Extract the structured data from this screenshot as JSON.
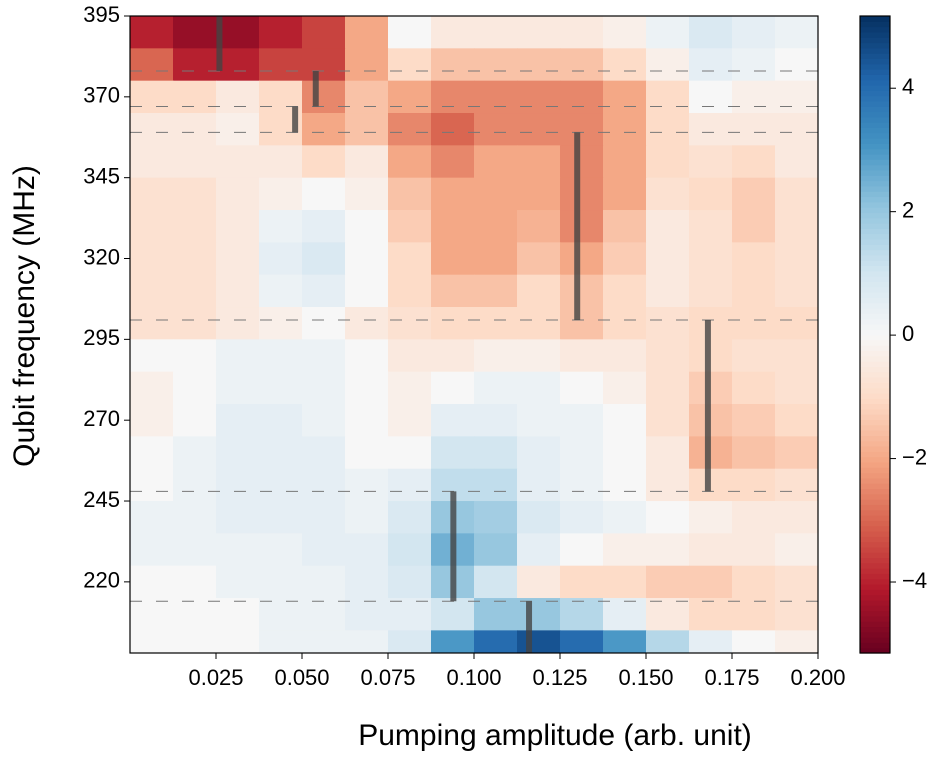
{
  "chart_data": {
    "type": "heatmap",
    "xlabel": "Pumping amplitude (arb. unit)",
    "ylabel": "Qubit frequency (MHz)",
    "xlim": [
      0,
      0.2
    ],
    "ylim": [
      198,
      395
    ],
    "xticks": [
      0.025,
      {
        "value": 0.05,
        "label": "0.050"
      },
      0.075,
      {
        "value": 0.1,
        "label": "0.100"
      },
      0.125,
      {
        "value": 0.15,
        "label": "0.150"
      },
      0.175,
      {
        "value": 0.2,
        "label": "0.200"
      }
    ],
    "yticks": [
      220,
      245,
      270,
      295,
      320,
      345,
      370,
      395
    ],
    "colormap": "RdBu",
    "clim": [
      -5.15,
      5.17
    ],
    "cticks": [
      {
        "value": -4,
        "label": "−4"
      },
      {
        "value": -2,
        "label": "−2"
      },
      0,
      2,
      4
    ],
    "x_edges": [
      0,
      0.0125,
      0.025,
      0.0375,
      0.05,
      0.0625,
      0.075,
      0.0875,
      0.1,
      0.1125,
      0.125,
      0.1375,
      0.15,
      0.1625,
      0.175,
      0.1875,
      0.2
    ],
    "y_edges": [
      395,
      385,
      375,
      365,
      355,
      345,
      335,
      325,
      315,
      305,
      295,
      285,
      275,
      265,
      255,
      245,
      235,
      225,
      215,
      205,
      198
    ],
    "z": [
      [
        -4,
        -4.5,
        -4.5,
        -4,
        -3.5,
        -2,
        0,
        -0.5,
        -0.5,
        -0.5,
        -0.5,
        -0.3,
        0.3,
        0.8,
        0.5,
        0.3
      ],
      [
        -3,
        -4,
        -4,
        -3.5,
        -3.5,
        -2,
        -1,
        -1.5,
        -1.5,
        -1.5,
        -1.5,
        -1,
        -0.3,
        0.5,
        0.3,
        0
      ],
      [
        -1,
        -1,
        -0.5,
        -1,
        -2.5,
        -1.5,
        -2,
        -2.5,
        -2.5,
        -2.5,
        -2.5,
        -2,
        -1,
        0,
        -0.3,
        -0.3
      ],
      [
        -0.5,
        -0.5,
        -0.3,
        -1,
        -2,
        -1.5,
        -2.5,
        -3,
        -2.5,
        -2.5,
        -2.5,
        -2,
        -1,
        -0.5,
        -0.5,
        -0.5
      ],
      [
        -0.5,
        -0.5,
        -0.5,
        -0.5,
        -1,
        -0.5,
        -2,
        -2.5,
        -2,
        -2,
        -2.5,
        -2,
        -1,
        -0.8,
        -1,
        -0.5
      ],
      [
        -0.8,
        -0.8,
        -0.5,
        -0.3,
        0,
        -0.3,
        -1.5,
        -2,
        -2,
        -2,
        -2.5,
        -2,
        -0.8,
        -1,
        -1.3,
        -0.8
      ],
      [
        -0.8,
        -0.8,
        -0.5,
        0.3,
        0.5,
        0,
        -1.3,
        -2,
        -2,
        -1.8,
        -2.5,
        -1.5,
        -0.5,
        -0.8,
        -1.3,
        -0.8
      ],
      [
        -0.8,
        -0.8,
        -0.5,
        0.5,
        0.8,
        0,
        -1,
        -2,
        -2,
        -1.5,
        -2,
        -1.3,
        -0.5,
        -0.8,
        -1,
        -0.8
      ],
      [
        -0.8,
        -0.8,
        -0.5,
        0.3,
        0.5,
        0,
        -1,
        -1.5,
        -1.5,
        -1,
        -1.5,
        -1,
        -0.5,
        -0.8,
        -1,
        -0.8
      ],
      [
        -0.8,
        -0.8,
        -0.5,
        -0.3,
        0,
        -0.5,
        -0.8,
        -1,
        -1,
        -1,
        -1.5,
        -1,
        -0.8,
        -1,
        -1,
        -1
      ],
      [
        0,
        0,
        0.3,
        0.3,
        0.3,
        0,
        -0.5,
        -0.5,
        -0.3,
        -0.3,
        -0.5,
        -0.5,
        -0.8,
        -1,
        -0.8,
        -0.8
      ],
      [
        -0.3,
        0,
        0.3,
        0.3,
        0.3,
        0,
        -0.3,
        0,
        0.3,
        0.3,
        0,
        -0.3,
        -0.8,
        -1.3,
        -1,
        -0.8
      ],
      [
        -0.3,
        0,
        0.5,
        0.5,
        0.3,
        0,
        -0.3,
        0.5,
        0.5,
        0.3,
        0.3,
        0,
        -0.8,
        -1.5,
        -1.3,
        -1
      ],
      [
        0,
        0.3,
        0.5,
        0.5,
        0.5,
        0,
        0,
        1,
        1,
        0.5,
        0.3,
        0,
        -0.5,
        -1.8,
        -1.5,
        -1.3
      ],
      [
        0,
        0.3,
        0.5,
        0.5,
        0.5,
        0.3,
        0.5,
        1.3,
        1.3,
        0.5,
        0.3,
        0,
        -0.5,
        -1,
        -1,
        -0.8
      ],
      [
        0.3,
        0.3,
        0.5,
        0.5,
        0.5,
        0.3,
        0.8,
        2,
        1.8,
        0.8,
        0.5,
        0.3,
        0,
        -0.3,
        -0.5,
        -0.5
      ],
      [
        0.3,
        0.3,
        0.3,
        0.3,
        0.5,
        0.5,
        1,
        2.5,
        2,
        0.5,
        0,
        -0.3,
        -0.3,
        -0.5,
        -0.5,
        -0.3
      ],
      [
        0,
        0,
        0.3,
        0.3,
        0.3,
        0.5,
        0.8,
        2,
        1,
        -0.5,
        -1,
        -1,
        -1.3,
        -1.3,
        -1,
        -0.8
      ],
      [
        0,
        0,
        0,
        0.3,
        0.3,
        0.5,
        0.5,
        1,
        2,
        2,
        1.5,
        0.5,
        -0.5,
        -1,
        -1,
        -0.8
      ],
      [
        0,
        0,
        0,
        0.3,
        0.3,
        0.3,
        0.8,
        3,
        4,
        4.5,
        4,
        3,
        1.5,
        0.5,
        0,
        -0.3
      ]
    ],
    "hlines": [
      378,
      367,
      359,
      301,
      248,
      214
    ],
    "vbars": [
      {
        "x": 0.026,
        "y": [
          378,
          395
        ]
      },
      {
        "x": 0.054,
        "y": [
          367,
          378
        ]
      },
      {
        "x": 0.048,
        "y": [
          359,
          367
        ]
      },
      {
        "x": 0.13,
        "y": [
          301,
          359
        ]
      },
      {
        "x": 0.168,
        "y": [
          248,
          301
        ]
      },
      {
        "x": 0.094,
        "y": [
          214,
          248
        ]
      },
      {
        "x": 0.116,
        "y": [
          198,
          214
        ]
      }
    ]
  }
}
